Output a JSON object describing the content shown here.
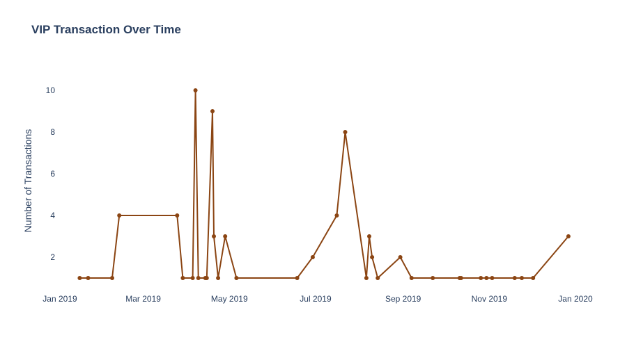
{
  "chart_data": {
    "type": "line",
    "title": "VIP Transaction Over Time",
    "xlabel": "",
    "ylabel": "Number of Transactions",
    "x_tick_labels": [
      {
        "date": "2019-01-01",
        "label": "Jan 2019"
      },
      {
        "date": "2019-03-01",
        "label": "Mar 2019"
      },
      {
        "date": "2019-05-01",
        "label": "May 2019"
      },
      {
        "date": "2019-07-01",
        "label": "Jul 2019"
      },
      {
        "date": "2019-09-01",
        "label": "Sep 2019"
      },
      {
        "date": "2019-11-01",
        "label": "Nov 2019"
      },
      {
        "date": "2020-01-01",
        "label": "Jan 2020"
      }
    ],
    "xlim": [
      "2019-01-01",
      "2020-01-01"
    ],
    "y_ticks": [
      2,
      4,
      6,
      8,
      10
    ],
    "ylim": [
      0.5,
      11
    ],
    "grid": false,
    "color": "#8b4513",
    "series": [
      {
        "name": "",
        "x": [
          "2019-01-15",
          "2019-01-21",
          "2019-02-07",
          "2019-02-12",
          "2019-03-25",
          "2019-03-29",
          "2019-04-05",
          "2019-04-07",
          "2019-04-09",
          "2019-04-14",
          "2019-04-15",
          "2019-04-19",
          "2019-04-20",
          "2019-04-23",
          "2019-04-28",
          "2019-05-06",
          "2019-06-18",
          "2019-06-29",
          "2019-07-16",
          "2019-07-22",
          "2019-08-06",
          "2019-08-08",
          "2019-08-10",
          "2019-08-14",
          "2019-08-30",
          "2019-09-07",
          "2019-09-22",
          "2019-10-11",
          "2019-10-12",
          "2019-10-26",
          "2019-10-30",
          "2019-11-03",
          "2019-11-19",
          "2019-11-24",
          "2019-12-02",
          "2019-12-27"
        ],
        "y": [
          1,
          1,
          1,
          4,
          4,
          1,
          1,
          10,
          1,
          1,
          1,
          9,
          3,
          1,
          3,
          1,
          1,
          2,
          4,
          8,
          1,
          3,
          2,
          1,
          2,
          1,
          1,
          1,
          1,
          1,
          1,
          1,
          1,
          1,
          1,
          3
        ]
      }
    ]
  }
}
